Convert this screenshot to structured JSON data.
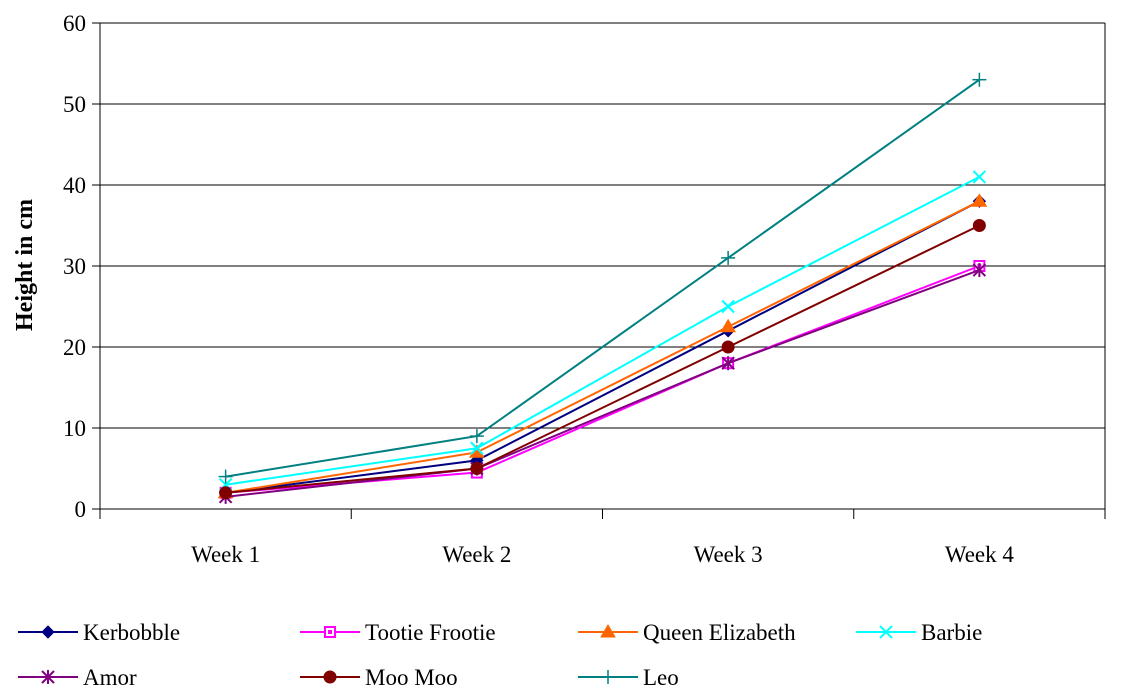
{
  "chart_data": {
    "type": "line",
    "title": "",
    "xlabel": "",
    "ylabel": "Height in cm",
    "categories": [
      "Week 1",
      "Week 2",
      "Week 3",
      "Week 4"
    ],
    "ylim": [
      0,
      60
    ],
    "yticks": [
      0,
      10,
      20,
      30,
      40,
      50,
      60
    ],
    "grid": "horizontal",
    "legend_position": "bottom",
    "series": [
      {
        "name": "Kerbobble",
        "values": [
          2,
          6,
          22,
          38
        ],
        "color": "#000080",
        "marker": "diamond"
      },
      {
        "name": "Tootie Frootie",
        "values": [
          2,
          4.5,
          18,
          30
        ],
        "color": "#FF00FF",
        "marker": "square-open"
      },
      {
        "name": "Queen Elizabeth",
        "values": [
          2,
          7,
          22.5,
          38
        ],
        "color": "#FF6600",
        "marker": "triangle"
      },
      {
        "name": "Barbie",
        "values": [
          3,
          7.5,
          25,
          41
        ],
        "color": "#00FFFF",
        "marker": "x"
      },
      {
        "name": "Amor",
        "values": [
          1.5,
          5,
          18,
          29.5
        ],
        "color": "#800080",
        "marker": "star"
      },
      {
        "name": "Moo Moo",
        "values": [
          2,
          5,
          20,
          35
        ],
        "color": "#800000",
        "marker": "circle"
      },
      {
        "name": "Leo",
        "values": [
          4,
          9,
          31,
          53
        ],
        "color": "#008080",
        "marker": "plus"
      }
    ]
  }
}
